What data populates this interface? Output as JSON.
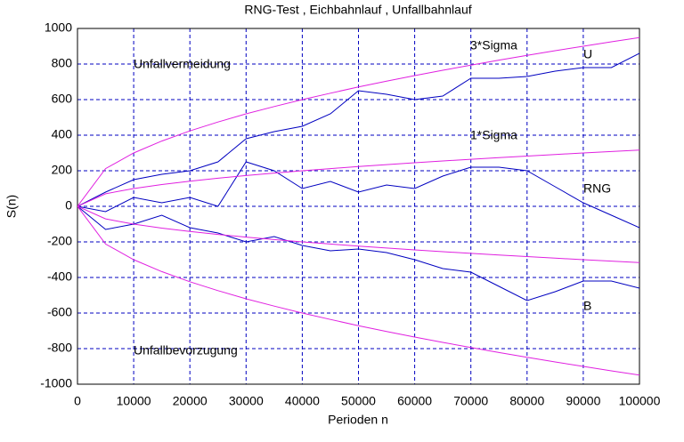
{
  "chart_data": {
    "type": "line",
    "title": "RNG-Test , Eichbahnlauf , Unfallbahnlauf",
    "x_label": "Perioden n",
    "y_label": "S(n)",
    "x": [
      0,
      5000,
      10000,
      15000,
      20000,
      25000,
      30000,
      35000,
      40000,
      45000,
      50000,
      55000,
      60000,
      65000,
      70000,
      75000,
      80000,
      85000,
      90000,
      95000,
      100000
    ],
    "series": [
      {
        "name": "U",
        "color": "#0000c0",
        "values": [
          0,
          80,
          150,
          180,
          200,
          250,
          380,
          420,
          450,
          520,
          650,
          630,
          600,
          620,
          720,
          720,
          730,
          760,
          780,
          780,
          860
        ]
      },
      {
        "name": "RNG",
        "color": "#0000c0",
        "values": [
          0,
          -30,
          50,
          20,
          50,
          0,
          250,
          200,
          100,
          140,
          80,
          120,
          100,
          170,
          220,
          220,
          200,
          110,
          20,
          -50,
          -120
        ]
      },
      {
        "name": "B",
        "color": "#0000c0",
        "values": [
          0,
          -130,
          -100,
          -50,
          -120,
          -150,
          -200,
          -170,
          -220,
          -250,
          -240,
          -260,
          -300,
          -350,
          -370,
          -450,
          -530,
          -480,
          -420,
          -420,
          -460
        ]
      },
      {
        "name": "3*Sigma",
        "color": "#e020e0",
        "values": [
          0,
          212,
          300,
          367,
          424,
          474,
          520,
          561,
          600,
          636,
          671,
          704,
          735,
          765,
          794,
          822,
          849,
          875,
          900,
          925,
          949
        ]
      },
      {
        "name": "1*Sigma",
        "color": "#e020e0",
        "values": [
          0,
          70.7,
          100,
          122.5,
          141.4,
          158.1,
          173.2,
          187.1,
          200,
          212.1,
          223.6,
          234.5,
          244.9,
          255,
          264.6,
          273.9,
          282.8,
          291.5,
          300,
          308.2,
          316.2
        ]
      },
      {
        "color": "#e020e0",
        "values": [
          0,
          -70.7,
          -100,
          -122.5,
          -141.4,
          -158.1,
          -173.2,
          -187.1,
          -200,
          -212.1,
          -223.6,
          -234.5,
          -244.9,
          -255,
          -264.6,
          -273.9,
          -282.8,
          -291.5,
          -300,
          -308.2,
          -316.2
        ]
      },
      {
        "color": "#e020e0",
        "values": [
          0,
          -212,
          -300,
          -367,
          -424,
          -474,
          -520,
          -561,
          -600,
          -636,
          -671,
          -704,
          -735,
          -765,
          -794,
          -822,
          -849,
          -875,
          -900,
          -925,
          -949
        ]
      }
    ],
    "annotations": [
      "Unfallvermeidung",
      "Unfallbevorzugung"
    ],
    "xlim": [
      0,
      100000
    ],
    "xticks": [
      0,
      10000,
      20000,
      30000,
      40000,
      50000,
      60000,
      70000,
      80000,
      90000,
      100000
    ],
    "ylim": [
      -1000,
      1000
    ],
    "yticks": [
      -1000,
      -800,
      -600,
      -400,
      -200,
      0,
      200,
      400,
      600,
      800,
      1000
    ],
    "grid": true
  }
}
